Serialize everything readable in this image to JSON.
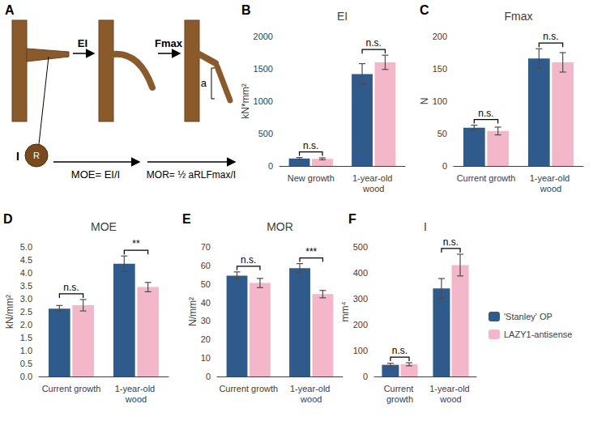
{
  "diagram": {
    "label": "A",
    "bending_stiffness": "EI",
    "max_force": "Fmax",
    "moment_of_inertia": "I",
    "radius": "R",
    "deflection": "a",
    "moe_formula": "MOE= EI/I",
    "mor_formula": "MOR= ½ aRLFmax/I"
  },
  "chart_data": [
    {
      "label": "B",
      "title": "EI",
      "type": "bar",
      "categories": [
        "New growth",
        "1-year-old wood"
      ],
      "ylabel": "kN*mm²",
      "ylim": [
        0,
        2000
      ],
      "yticks": [
        0,
        500,
        1000,
        1500,
        2000
      ],
      "grid": false,
      "series": [
        {
          "name": "'Stanley' OP",
          "color": "#2E5A8C",
          "values": [
            115,
            1420
          ],
          "errors": [
            15,
            160
          ]
        },
        {
          "name": "LAZY1-antisense",
          "color": "#F4B6C9",
          "values": [
            110,
            1600
          ],
          "errors": [
            15,
            110
          ]
        }
      ],
      "annotations": [
        "n.s.",
        "n.s."
      ]
    },
    {
      "label": "C",
      "title": "Fmax",
      "type": "bar",
      "categories": [
        "Current growth",
        "1-year-old wood"
      ],
      "ylabel": "N",
      "ylim": [
        0,
        200
      ],
      "yticks": [
        0,
        50,
        100,
        150,
        200
      ],
      "grid": false,
      "series": [
        {
          "name": "'Stanley' OP",
          "color": "#2E5A8C",
          "values": [
            59,
            166
          ],
          "errors": [
            4,
            15
          ]
        },
        {
          "name": "LAZY1-antisense",
          "color": "#F4B6C9",
          "values": [
            54,
            160
          ],
          "errors": [
            6,
            15
          ]
        }
      ],
      "annotations": [
        "n.s.",
        "n.s."
      ]
    },
    {
      "label": "D",
      "title": "MOE",
      "type": "bar",
      "categories": [
        "Current growth",
        "1-year-old wood"
      ],
      "ylabel": "kN/mm²",
      "ylim": [
        0,
        5
      ],
      "yticks": [
        {
          "value": 0,
          "label": "0.0"
        },
        0.5,
        {
          "value": 1,
          "label": "1.0"
        },
        1.5,
        {
          "value": 2,
          "label": "2.0"
        },
        2.5,
        {
          "value": 3,
          "label": "3.0"
        },
        3.5,
        {
          "value": 4,
          "label": "4.0"
        },
        4.5,
        {
          "value": 5,
          "label": "5.0"
        }
      ],
      "grid": false,
      "series": [
        {
          "name": "'Stanley' OP",
          "color": "#2E5A8C",
          "values": [
            2.62,
            4.35
          ],
          "errors": [
            0.12,
            0.3
          ]
        },
        {
          "name": "LAZY1-antisense",
          "color": "#F4B6C9",
          "values": [
            2.75,
            3.45
          ],
          "errors": [
            0.22,
            0.18
          ]
        }
      ],
      "annotations": [
        "n.s.",
        "**"
      ]
    },
    {
      "label": "E",
      "title": "MOR",
      "type": "bar",
      "categories": [
        "Current growth",
        "1-year-old wood"
      ],
      "ylabel": "N/mm²",
      "ylim": [
        0,
        70
      ],
      "yticks": [
        0,
        10,
        20,
        30,
        40,
        50,
        60,
        70
      ],
      "grid": false,
      "series": [
        {
          "name": "'Stanley' OP",
          "color": "#2E5A8C",
          "values": [
            54.5,
            58.5
          ],
          "errors": [
            2,
            2.5
          ]
        },
        {
          "name": "LAZY1-antisense",
          "color": "#F4B6C9",
          "values": [
            50.5,
            44.5
          ],
          "errors": [
            2.5,
            2
          ]
        }
      ],
      "annotations": [
        "n.s.",
        "***"
      ]
    },
    {
      "label": "F",
      "title": "I",
      "type": "bar",
      "categories": [
        "Current growth",
        "1-year-old wood"
      ],
      "ylabel": "mm⁴",
      "ylim": [
        0,
        500
      ],
      "yticks": [
        0,
        100,
        200,
        300,
        400,
        500
      ],
      "grid": false,
      "legend": "right",
      "series": [
        {
          "name": "'Stanley' OP",
          "color": "#2E5A8C",
          "values": [
            45,
            340
          ],
          "errors": [
            6,
            38
          ]
        },
        {
          "name": "LAZY1-antisense",
          "color": "#F4B6C9",
          "values": [
            47,
            430
          ],
          "errors": [
            6,
            42
          ]
        }
      ],
      "annotations": [
        "n.s.",
        "n.s."
      ]
    }
  ]
}
